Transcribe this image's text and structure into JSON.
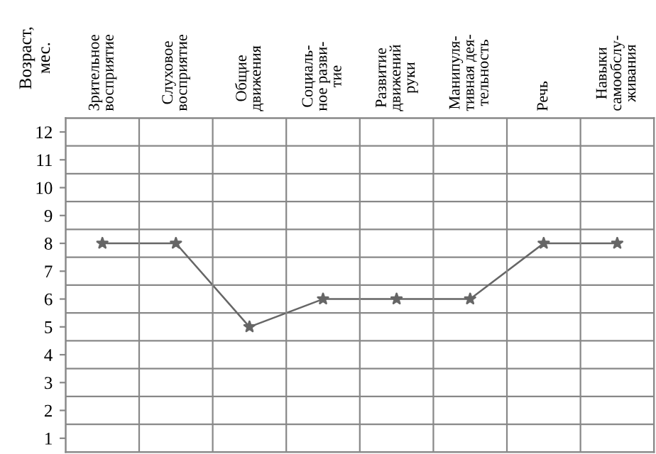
{
  "chart_data": {
    "type": "line",
    "ylabel": "Возраст,\nмес.",
    "categories": [
      "Зрительное\nвосприятие",
      "Слуховое\nвосприятие",
      "Общие\nдвижения",
      "Социаль-\nное разви-\nтие",
      "Развитие\nдвижений\nруки",
      "Манипуля-\nтивная дея-\nтельность",
      "Речь",
      "Навыки\nсамообслу-\nживания"
    ],
    "series": [
      {
        "color": "#666666",
        "values": [
          8,
          8,
          5,
          6,
          6,
          6,
          8,
          8
        ]
      }
    ],
    "ylim": [
      0.5,
      12.5
    ],
    "yticks": [
      {
        "value": 0.5,
        "label": null
      },
      1,
      {
        "value": 1.5,
        "label": null
      },
      2,
      {
        "value": 2.5,
        "label": null
      },
      3,
      {
        "value": 3.5,
        "label": null
      },
      4,
      {
        "value": 4.5,
        "label": null
      },
      5,
      {
        "value": 5.5,
        "label": null
      },
      6,
      {
        "value": 6.5,
        "label": null
      },
      7,
      {
        "value": 7.5,
        "label": null
      },
      8,
      {
        "value": 8.5,
        "label": null
      },
      9,
      {
        "value": 9.5,
        "label": null
      },
      10,
      {
        "value": 10.5,
        "label": null
      },
      11,
      {
        "value": 11.5,
        "label": null
      },
      12,
      {
        "value": 12.5,
        "label": null
      }
    ],
    "grid": true,
    "marker": "star",
    "line_style": "solid",
    "legend": false
  }
}
